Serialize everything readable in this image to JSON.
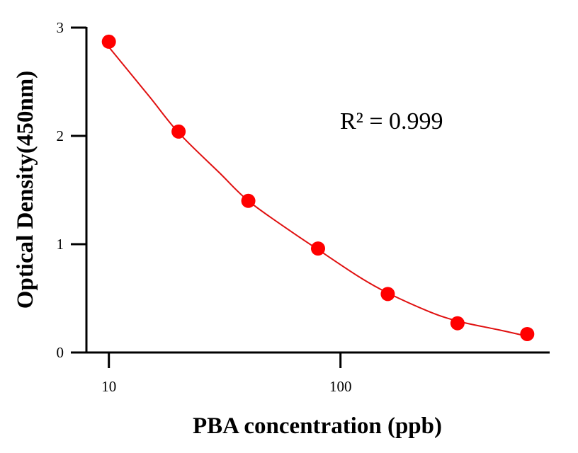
{
  "chart_data": {
    "type": "scatter",
    "title": "",
    "xlabel": "PBA concentration (ppb)",
    "ylabel": "Optical Density(450nm)",
    "x_scale": "log",
    "xlim": [
      8,
      800
    ],
    "ylim": [
      0,
      3
    ],
    "x_ticks": [
      10,
      100
    ],
    "x_tick_labels": [
      "10",
      "100"
    ],
    "y_ticks": [
      0,
      1,
      2,
      3
    ],
    "y_tick_labels": [
      "0",
      "1",
      "2",
      "3"
    ],
    "grid": false,
    "legend": "none",
    "series": [
      {
        "x": [
          10,
          20,
          40,
          80,
          160,
          320,
          640
        ],
        "y": [
          2.87,
          2.04,
          1.4,
          0.96,
          0.54,
          0.27,
          0.17
        ]
      }
    ],
    "fit_curve": {
      "x": [
        10,
        15,
        20,
        30,
        40,
        60,
        80,
        120,
        160,
        240,
        320,
        480,
        640
      ],
      "y": [
        2.82,
        2.36,
        2.03,
        1.66,
        1.4,
        1.13,
        0.95,
        0.7,
        0.55,
        0.38,
        0.29,
        0.21,
        0.15
      ]
    },
    "annotation": "R² = 0.999",
    "colors": {
      "points": "#ff0000",
      "curve": "#e01010",
      "axes": "#000000"
    }
  }
}
